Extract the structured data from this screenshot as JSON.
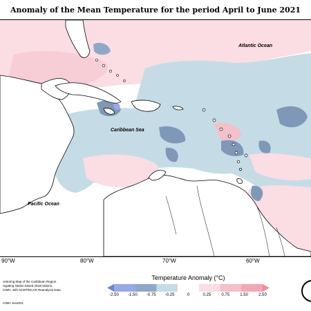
{
  "title": "Anomaly of the Mean Temperature for the period April to June 2021",
  "longitude_labels": [
    "90°W",
    "80°W",
    "70°W",
    "60°W"
  ],
  "ocean_labels": {
    "atlantic": "Atlantic Ocean",
    "caribbean": "Caribbean Sea",
    "pacific": "Pacific Ocean"
  },
  "credit_lines": [
    "onitoring Map of the Caribbean Region.",
    "regating station based observations,",
    "CIMH, with NCEP/NCAR Reanalysis Data",
    "CIMH Jun2021"
  ],
  "legend": {
    "title": "Temperature Anomaly (°C)",
    "ticks": [
      "-2.50",
      "-1.50",
      "-0.75",
      "-0.25",
      "0",
      "0.25",
      "0.75",
      "1.50",
      "2.50"
    ],
    "colors": [
      "#6f86bf",
      "#98a8e8",
      "#8fa8c8",
      "#c5dce6",
      "#ffffff",
      "#fbdde4",
      "#f2c1c9",
      "#f2a8b4",
      "#f58a94"
    ]
  },
  "colors": {
    "land": "#ffffff",
    "sea_neutral": "#ffffff",
    "cool_light": "#c5dce6",
    "cool_mid": "#7f98b8",
    "warm_light": "#fbdde4",
    "warm_mid": "#f2b8c4"
  }
}
